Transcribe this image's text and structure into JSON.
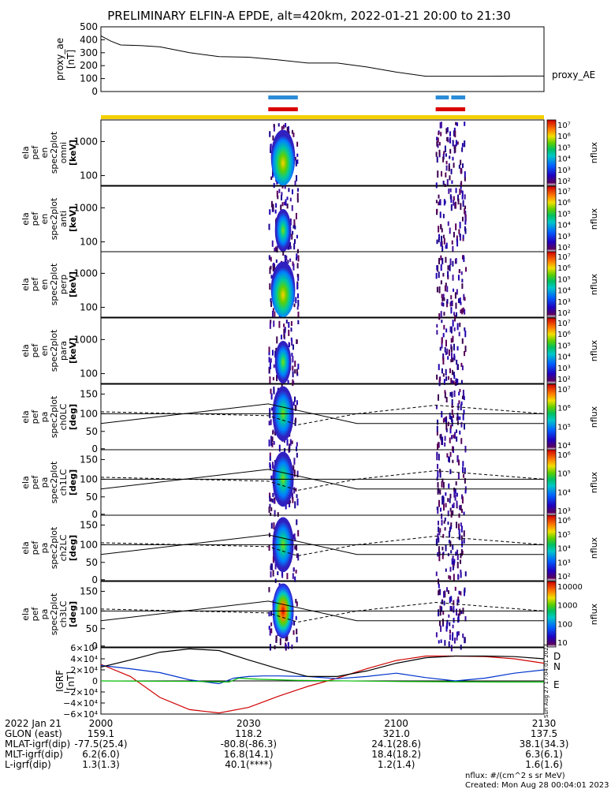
{
  "title": "PRELIMINARY ELFIN-A EPDE, alt=420km, 2022-01-21 20:00 to 21:30",
  "colors": {
    "blue_bar": "#2b8cd8",
    "red_bar": "#d90000",
    "yellow_bar": "#f5d000",
    "bz_red": "#d00000",
    "bn_blue": "#0033cc",
    "be_green": "#00bb00"
  },
  "chart_data": [
    {
      "type": "line",
      "name": "ae",
      "ylabel": "proxy_ae [nT]",
      "ylim": [
        0,
        500
      ],
      "yticks": [
        "500",
        "400",
        "300",
        "200",
        "100",
        "0"
      ],
      "legend": "proxy_AE",
      "x": [
        0,
        2,
        4,
        8,
        12,
        18,
        24,
        30,
        36,
        42,
        48,
        54,
        60,
        66,
        72,
        78,
        84,
        90
      ],
      "y": [
        430,
        390,
        360,
        355,
        345,
        300,
        270,
        265,
        245,
        220,
        220,
        190,
        150,
        118,
        118,
        118,
        120,
        120
      ]
    },
    {
      "type": "heatmap",
      "name": "spectrograms",
      "energy_ticks": [
        "1000",
        "100"
      ],
      "angle_ticks": [
        "150",
        "100",
        "50",
        "0"
      ],
      "colorbar_label": "nflux",
      "ebands_x_minutes": [
        [
          34,
          40
        ],
        [
          68,
          74
        ]
      ],
      "panels": [
        {
          "line1": "ela",
          "line2": "pef",
          "line3": "en",
          "line4": "spec2plot",
          "line5": "omni",
          "unit": "[keV]",
          "cb": [
            "10⁷",
            "10⁶",
            "10⁵",
            "10⁴",
            "10³",
            "10²"
          ]
        },
        {
          "line1": "ela",
          "line2": "pef",
          "line3": "en",
          "line4": "spec2plot",
          "line5": "anti",
          "unit": "[keV]",
          "cb": [
            "10⁷",
            "10⁶",
            "10⁵",
            "10⁴",
            "10³",
            "10²"
          ]
        },
        {
          "line1": "ela",
          "line2": "pef",
          "line3": "en",
          "line4": "spec2plot",
          "line5": "perp",
          "unit": "[keV]",
          "cb": [
            "10⁷",
            "10⁶",
            "10⁵",
            "10⁴",
            "10³",
            "10²"
          ]
        },
        {
          "line1": "ela",
          "line2": "pef",
          "line3": "en",
          "line4": "spec2plot",
          "line5": "para",
          "unit": "[keV]",
          "cb": [
            "10⁷",
            "10⁶",
            "10⁵",
            "10⁴",
            "10³",
            "10²"
          ]
        },
        {
          "line1": "ela",
          "line2": "pef",
          "line3": "pa",
          "line4": "spec2plot",
          "line5": "ch0LC",
          "unit": "[deg]",
          "cb": [
            "10⁷",
            "10⁶",
            "10⁵",
            "10⁴"
          ]
        },
        {
          "line1": "ela",
          "line2": "pef",
          "line3": "pa",
          "line4": "spec2plot",
          "line5": "ch1LC",
          "unit": "[deg]",
          "cb": [
            "10⁶",
            "10⁵",
            "10⁴",
            "10³"
          ]
        },
        {
          "line1": "ela",
          "line2": "pef",
          "line3": "pa",
          "line4": "spec2plot",
          "line5": "ch2LC",
          "unit": "[deg]",
          "cb": [
            "10⁶",
            "10⁵",
            "10⁴",
            "10³",
            "10²"
          ]
        },
        {
          "line1": "ela",
          "line2": "pef",
          "line3": "pa",
          "line4": "spec2plot",
          "line5": "ch3LC",
          "unit": "[deg]",
          "cb": [
            "10000",
            "1000",
            "100",
            "10"
          ]
        }
      ]
    },
    {
      "type": "line",
      "name": "igrf",
      "ylabel": "IGRF [nT]",
      "yticks": [
        "6×10⁴",
        "4×10⁴",
        "2×10⁴",
        "0",
        "−2×10⁴",
        "−4×10⁴",
        "−6×10⁴"
      ],
      "ylim": [
        -60000,
        60000
      ],
      "legend": [
        "D",
        "N",
        "E"
      ],
      "series": [
        {
          "name": "D",
          "x": [
            0,
            6,
            12,
            18,
            24,
            30,
            36,
            42,
            48,
            54,
            60,
            66,
            72,
            78,
            84,
            90
          ],
          "y": [
            30000,
            8000,
            -30000,
            -52000,
            -58000,
            -48000,
            -28000,
            -10000,
            5000,
            22000,
            37000,
            45000,
            45000,
            44000,
            40000,
            32000
          ]
        },
        {
          "name": "N",
          "x": [
            0,
            6,
            12,
            18,
            24,
            27,
            30,
            33,
            36,
            42,
            48,
            54,
            60,
            66,
            72,
            78,
            84,
            90
          ],
          "y": [
            28000,
            22000,
            15000,
            2000,
            -5000,
            5000,
            8000,
            9000,
            9000,
            8000,
            4000,
            8000,
            14000,
            6000,
            0,
            5000,
            14000,
            20000
          ]
        },
        {
          "name": "E",
          "x": [
            0,
            20,
            26,
            28,
            32,
            40,
            60,
            80,
            90
          ],
          "y": [
            0,
            -1000,
            -2000,
            5000,
            3000,
            1000,
            -1000,
            -2000,
            -2000
          ]
        },
        {
          "name": "",
          "x": [
            0,
            6,
            12,
            18,
            24,
            30,
            36,
            42,
            48,
            54,
            60,
            66,
            72,
            78,
            84,
            90
          ],
          "y": [
            25000,
            38000,
            52000,
            58000,
            55000,
            38000,
            22000,
            8000,
            8000,
            18000,
            32000,
            42000,
            45000,
            45000,
            44000,
            40000
          ]
        }
      ]
    }
  ],
  "labels_table": {
    "rows": [
      {
        "name": "2022 Jan 21",
        "v": [
          "2000",
          "2030",
          "2100",
          "2130"
        ]
      },
      {
        "name": "GLON (east)",
        "v": [
          "159.1",
          "118.2",
          "321.0",
          "137.5"
        ]
      },
      {
        "name": "MLAT-igrf(dip)",
        "v": [
          "-77.5(25.4)",
          "-80.8(-86.3)",
          "24.1(28.6)",
          "38.1(34.3)"
        ]
      },
      {
        "name": "MLT-igrf(dip)",
        "v": [
          "6.2(6.0)",
          "16.8(14.1)",
          "18.4(18.2)",
          "6.3(6.1)"
        ]
      },
      {
        "name": "L-igrf(dip)",
        "v": [
          "1.3(1.3)",
          "40.1(****)",
          "1.2(1.4)",
          "1.6(1.6)"
        ]
      }
    ]
  },
  "footer": {
    "units": "nflux: #/(cm^2 s sr MeV)",
    "created": "Created: Mon Aug 28 00:04:01 2023",
    "side_stamp": "Sun Aug 27 17:04:01 2023"
  }
}
